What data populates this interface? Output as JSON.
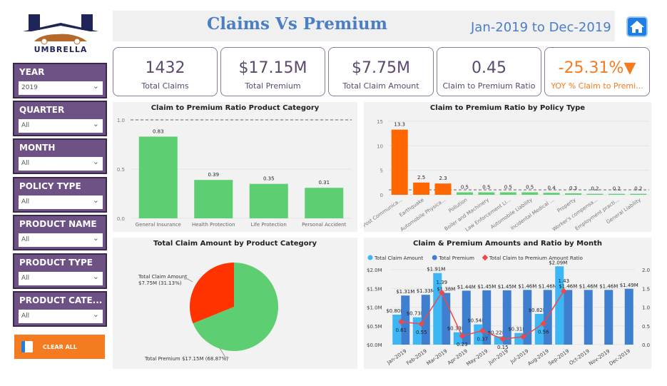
{
  "brand": {
    "name": "UMBRELLA"
  },
  "header": {
    "title": "Claims Vs Premium",
    "date_range": "Jan-2019 to Dec-2019",
    "home_icon": "home-icon"
  },
  "slicers": [
    {
      "label": "YEAR",
      "value": "2019"
    },
    {
      "label": "QUARTER",
      "value": "All"
    },
    {
      "label": "MONTH",
      "value": "All"
    },
    {
      "label": "POLICY TYPE",
      "value": "All"
    },
    {
      "label": "PRODUCT NAME",
      "value": "All"
    },
    {
      "label": "PRODUCT TYPE",
      "value": "All"
    },
    {
      "label": "PRODUCT CATE...",
      "value": "All"
    }
  ],
  "clear_all": "CLEAR ALL",
  "kpis": [
    {
      "value": "1432",
      "label": "Total Claims"
    },
    {
      "value": "$17.15M",
      "label": "Total Premium"
    },
    {
      "value": "$7.75M",
      "label": "Total Claim Amount"
    },
    {
      "value": "0.45",
      "label": "Claim to Premium Ratio"
    },
    {
      "value": "-25.31%",
      "label": "YOY % Claim to Premi...",
      "indicator": "down-triangle",
      "color": "#f47b20"
    }
  ],
  "chart_data": [
    {
      "type": "bar",
      "title": "Claim to Premium Ratio Product Category",
      "categories": [
        "General Insurance",
        "Health Protection",
        "Life Protection",
        "Personal Accident"
      ],
      "values": [
        0.83,
        0.39,
        0.35,
        0.31
      ],
      "ylim": [
        0,
        1.0
      ],
      "yticks": [
        "0.0",
        "0.5",
        "1.0"
      ],
      "reference_line": 1.0,
      "color": "#5dcf72"
    },
    {
      "type": "bar",
      "title": "Claim to Premium Ratio by Policy Type",
      "categories": [
        "Post Communica...",
        "Earthquake",
        "Automobile Physica...",
        "Pollution",
        "Boiler and Machinery",
        "Law Enforcement Li...",
        "Automobile Liability",
        "Incidental Medical ...",
        "Property",
        "Worker's compensa...",
        "Employment practi...",
        "General Liability"
      ],
      "values": [
        13.3,
        2.5,
        2.3,
        0.5,
        0.5,
        0.5,
        0.5,
        0.4,
        0.3,
        0.2,
        0.2,
        0.2
      ],
      "ylim": [
        0,
        15
      ],
      "yticks": [
        "0",
        "5",
        "10",
        "15"
      ],
      "reference_line": 1.0,
      "colors": {
        "above": "#ff6600",
        "below": "#5dcf72"
      }
    },
    {
      "type": "pie",
      "title": "Total Claim Amount by Product Category",
      "slices": [
        {
          "label": "Total Claim Amount",
          "value_label": "$7.75M (31.13%)",
          "percent": 31.13,
          "color": "#ff3300"
        },
        {
          "label": "Total Premium",
          "value_label": "$17.15M (68.87%)",
          "percent": 68.87,
          "color": "#5dcf72"
        }
      ]
    },
    {
      "type": "bar",
      "title": "Claim & Premium Amounts and Ratio by Month",
      "categories": [
        "Jan-2019",
        "Feb-2019",
        "Mar-2019",
        "Apr-2019",
        "May-2019",
        "Jun-2019",
        "Jul-2019",
        "Aug-2019",
        "Sep-2019",
        "Oct-2019",
        "Nov-2019",
        "Dec-2019"
      ],
      "series": [
        {
          "name": "Total Claim Amount",
          "values": [
            0.8,
            0.73,
            1.91,
            0.33,
            0.54,
            0.22,
            0.31,
            0.82,
            2.09,
            null,
            null,
            null
          ],
          "labels": [
            "$0.80M",
            "$0.73M",
            "$1.91M",
            "$0.33M",
            "$0.54M",
            "$0.22M",
            "$0.31M",
            "$0.82M",
            "$2.09M",
            "",
            "",
            ""
          ],
          "color": "#3db6f5"
        },
        {
          "name": "Total Premium",
          "values": [
            1.31,
            1.33,
            1.38,
            1.44,
            1.45,
            1.45,
            1.46,
            1.46,
            1.46,
            1.46,
            1.46,
            1.49
          ],
          "labels": [
            "$1.31M",
            "$1.33M",
            "$1.38M",
            "$1.44M",
            "$1.45M",
            "$1.45M",
            "$1.46M",
            "$1.46M",
            "$1.46M",
            "$1.46M",
            "$1.46M",
            "$1.49M"
          ],
          "color": "#3f7fd0"
        },
        {
          "name": "Total Claim to Premium Amount Ratio",
          "type": "line",
          "axis": "right",
          "values": [
            0.61,
            0.55,
            1.39,
            0.23,
            0.37,
            0.15,
            0.21,
            0.56,
            1.43,
            null,
            null,
            null
          ],
          "labels": [
            "0.61",
            "0.55",
            "1.39",
            "0.23",
            "0.37",
            "0.15",
            "",
            "0.56",
            "1.43",
            "",
            "",
            ""
          ],
          "color": "#f04848"
        }
      ],
      "ylim": [
        0,
        2.0
      ],
      "yticks": [
        "$0.0M",
        "$0.5M",
        "$1.0M",
        "$1.5M",
        "$2.0M"
      ],
      "y2lim": [
        0,
        2.0
      ],
      "y2ticks": [
        "0.0",
        "0.5",
        "1.0",
        "1.5",
        "2.0"
      ],
      "legend": "top-left"
    }
  ]
}
